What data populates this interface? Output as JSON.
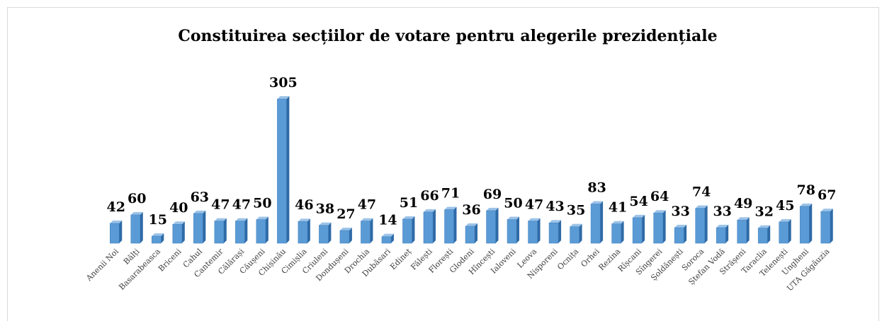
{
  "chart_data": {
    "type": "bar3d",
    "title": "Constituirea secțiilor de votare pentru alegerile prezidențiale",
    "categories": [
      "Anenii Noi",
      "Bălți",
      "Basarabeasca",
      "Briceni",
      "Cahul",
      "Cantemir",
      "Călărași",
      "Căușeni",
      "Chișinău",
      "Cimișlia",
      "Criuleni",
      "Dondușeni",
      "Drochia",
      "Dubăsari",
      "Edineț",
      "Fălești",
      "Florești",
      "Glodeni",
      "Hîncești",
      "Ialoveni",
      "Leova",
      "Nisporeni",
      "Ocnița",
      "Orhei",
      "Rezina",
      "Rîșcani",
      "Sîngerei",
      "Șoldănești",
      "Soroca",
      "Ștefan Vodă",
      "Strășeni",
      "Taraclia",
      "Telenești",
      "Ungheni",
      "UTA Găgăuzia"
    ],
    "values": [
      42,
      60,
      15,
      40,
      63,
      47,
      47,
      50,
      305,
      46,
      38,
      27,
      47,
      14,
      51,
      66,
      71,
      36,
      69,
      50,
      47,
      43,
      35,
      83,
      41,
      54,
      64,
      33,
      74,
      33,
      49,
      32,
      45,
      78,
      67
    ],
    "color": "#5b9bd5"
  }
}
